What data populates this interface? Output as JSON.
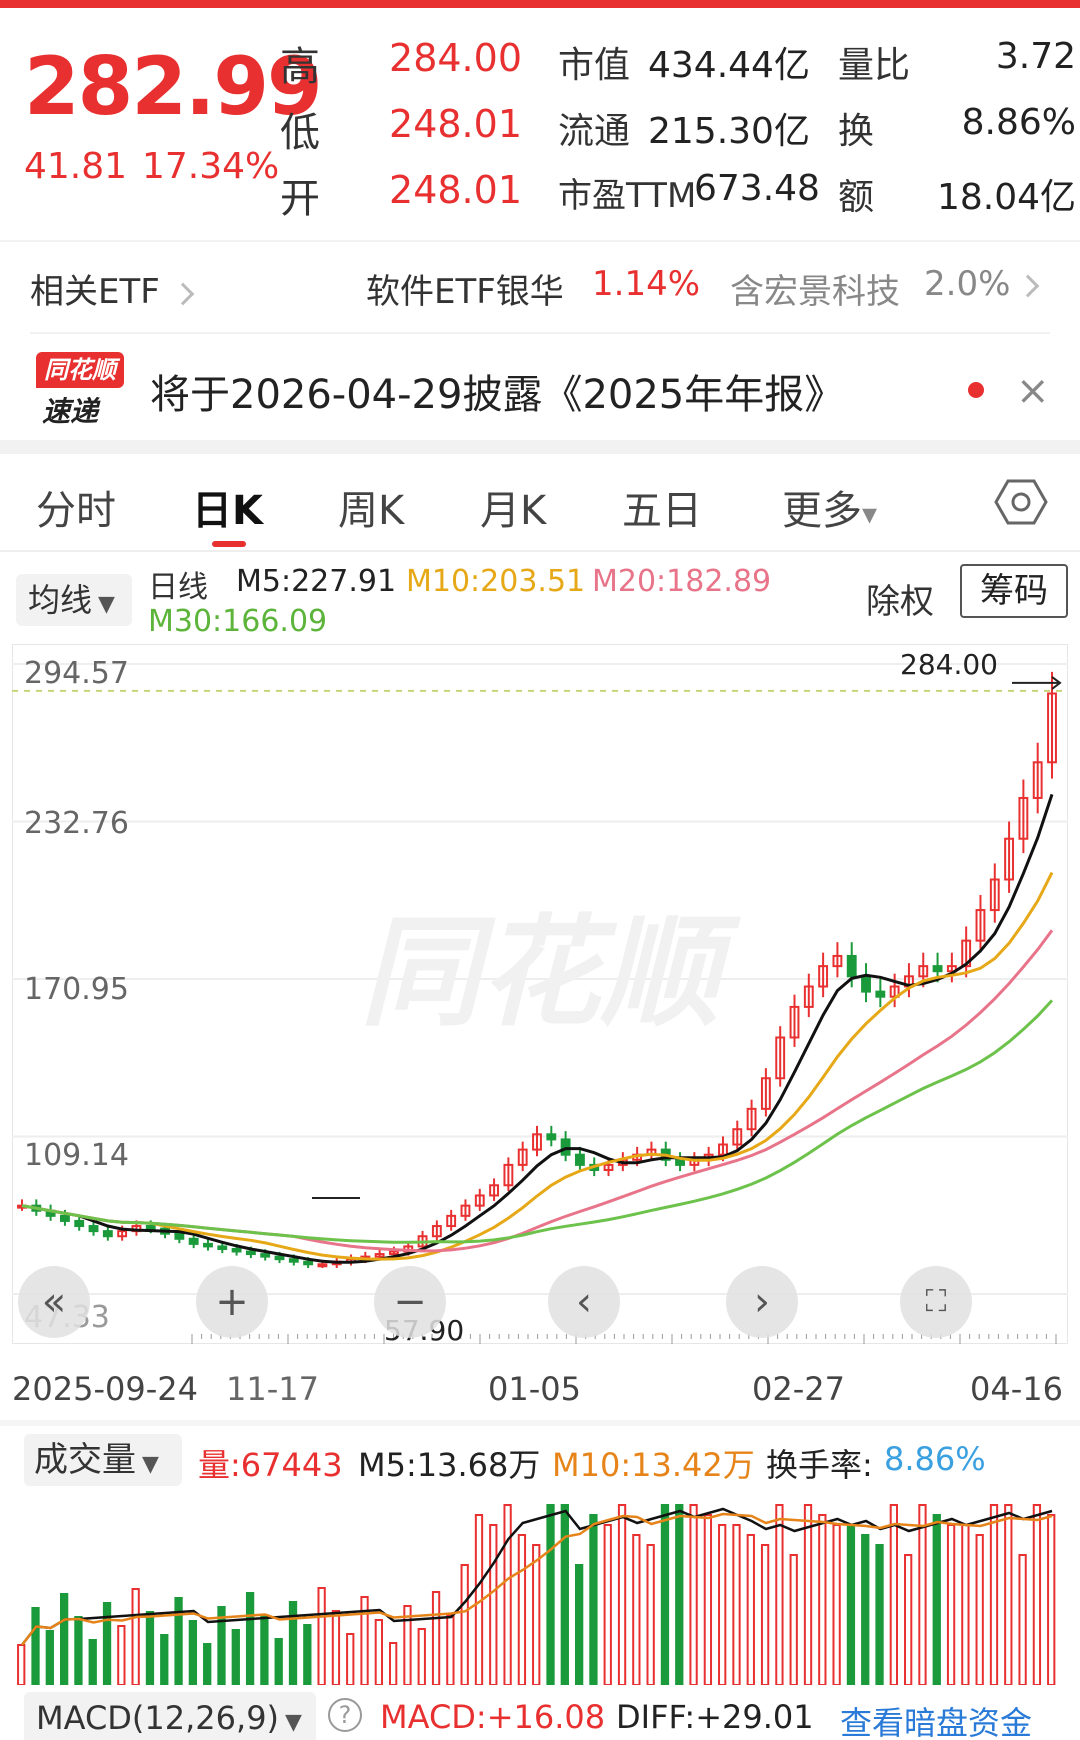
{
  "quote": {
    "price": "282.99",
    "change": "41.81",
    "change_pct": "17.34%",
    "high_label": "高",
    "high": "284.00",
    "low_label": "低",
    "low": "248.01",
    "open_label": "开",
    "open": "248.01",
    "mcap_label": "市值",
    "mcap": "434.44亿",
    "float_label": "流通",
    "float": "215.30亿",
    "pe_label": "市盈TTM",
    "pe": "673.48",
    "volratio_label": "量比",
    "volratio": "3.72",
    "turnover_label": "换",
    "turnover": "8.86%",
    "amount_label": "额",
    "amount": "18.04亿"
  },
  "etf": {
    "label": "相关ETF",
    "name1": "软件ETF银华",
    "pct1": "1.14%",
    "name2": "含宏景科技",
    "pct2": "2.0%"
  },
  "news": {
    "logo_top": "同花顺",
    "logo_bottom": "速递",
    "text": "将于2026-04-29披露《2025年年报》",
    "close": "×"
  },
  "tabs": [
    "分时",
    "日K",
    "周K",
    "月K",
    "五日",
    "更多"
  ],
  "tab_more_arrow": "▾",
  "ma": {
    "button": "均线",
    "line_type": "日线",
    "m5": "M5:227.91",
    "m10": "M10:203.51",
    "m20": "M20:182.89",
    "m30": "M30:166.09",
    "chuquan": "除权",
    "chouma": "筹码"
  },
  "chart_labels": {
    "y_ticks": [
      "294.57",
      "232.76",
      "170.95",
      "109.14",
      "47.33"
    ],
    "high_marker": "284.00",
    "low_marker": "57.90",
    "dates": [
      "2025-09-24",
      "11-17",
      "01-05",
      "02-27",
      "04-16"
    ],
    "watermark": "同花顺"
  },
  "volume": {
    "button": "成交量",
    "vol": "量:67443",
    "m5": "M5:13.68万",
    "m10": "M10:13.42万",
    "turn_label": "换手率:",
    "turn_val": "8.86%"
  },
  "macd": {
    "button": "MACD(12,26,9)",
    "help": "?",
    "macd": "MACD:+16.08",
    "diff": "DIFF:+29.01",
    "link": "查看暗盘资金"
  },
  "colors": {
    "up": "#e93030",
    "down": "#1a9a3a",
    "m5": "#111111",
    "m10": "#e6a817",
    "m20": "#e8748a",
    "m30": "#6cc24a"
  },
  "chart_data": {
    "type": "candlestick",
    "y_range": [
      47.33,
      294.57
    ],
    "y_ticks": [
      294.57,
      232.76,
      170.95,
      109.14,
      47.33
    ],
    "period_high": 284.0,
    "period_low": 57.9,
    "x_labels": [
      "2025-09-24",
      "11-17",
      "01-05",
      "02-27",
      "04-16"
    ],
    "closes_approx": [
      82,
      80,
      78,
      76,
      74,
      72,
      70,
      72,
      74,
      73,
      71,
      69,
      67,
      66,
      65,
      64,
      63,
      62,
      61,
      60,
      59,
      59,
      60,
      61,
      62,
      63,
      64,
      66,
      70,
      74,
      78,
      82,
      86,
      90,
      98,
      104,
      110,
      108,
      102,
      98,
      96,
      98,
      100,
      102,
      104,
      100,
      98,
      100,
      102,
      106,
      112,
      120,
      132,
      148,
      160,
      168,
      176,
      180,
      172,
      166,
      164,
      168,
      172,
      176,
      174,
      176,
      186,
      198,
      210,
      226,
      242,
      256,
      282.99
    ],
    "ma": {
      "M5": 227.91,
      "M10": 203.51,
      "M20": 182.89,
      "M30": 166.09
    }
  }
}
